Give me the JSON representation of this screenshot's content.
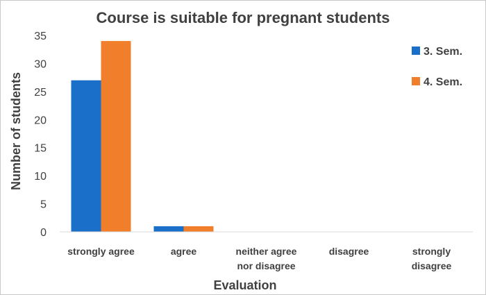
{
  "chart_data": {
    "type": "bar",
    "title": "Course is suitable for pregnant students",
    "xlabel": "Evaluation",
    "ylabel": "Number of students",
    "ylim": [
      0,
      35
    ],
    "yticks": [
      0,
      5,
      10,
      15,
      20,
      25,
      30,
      35
    ],
    "categories": [
      [
        "strongly agree"
      ],
      [
        "agree"
      ],
      [
        "neither agree",
        "nor disagree"
      ],
      [
        "disagree"
      ],
      [
        "strongly",
        "disagree"
      ]
    ],
    "series": [
      {
        "name": "3. Sem.",
        "color": "#1a70c8",
        "values": [
          27,
          1,
          0,
          0,
          0
        ]
      },
      {
        "name": "4. Sem.",
        "color": "#f07e2a",
        "values": [
          34,
          1,
          0,
          0,
          0
        ]
      }
    ],
    "legend_position": "top-right",
    "grid": false
  }
}
